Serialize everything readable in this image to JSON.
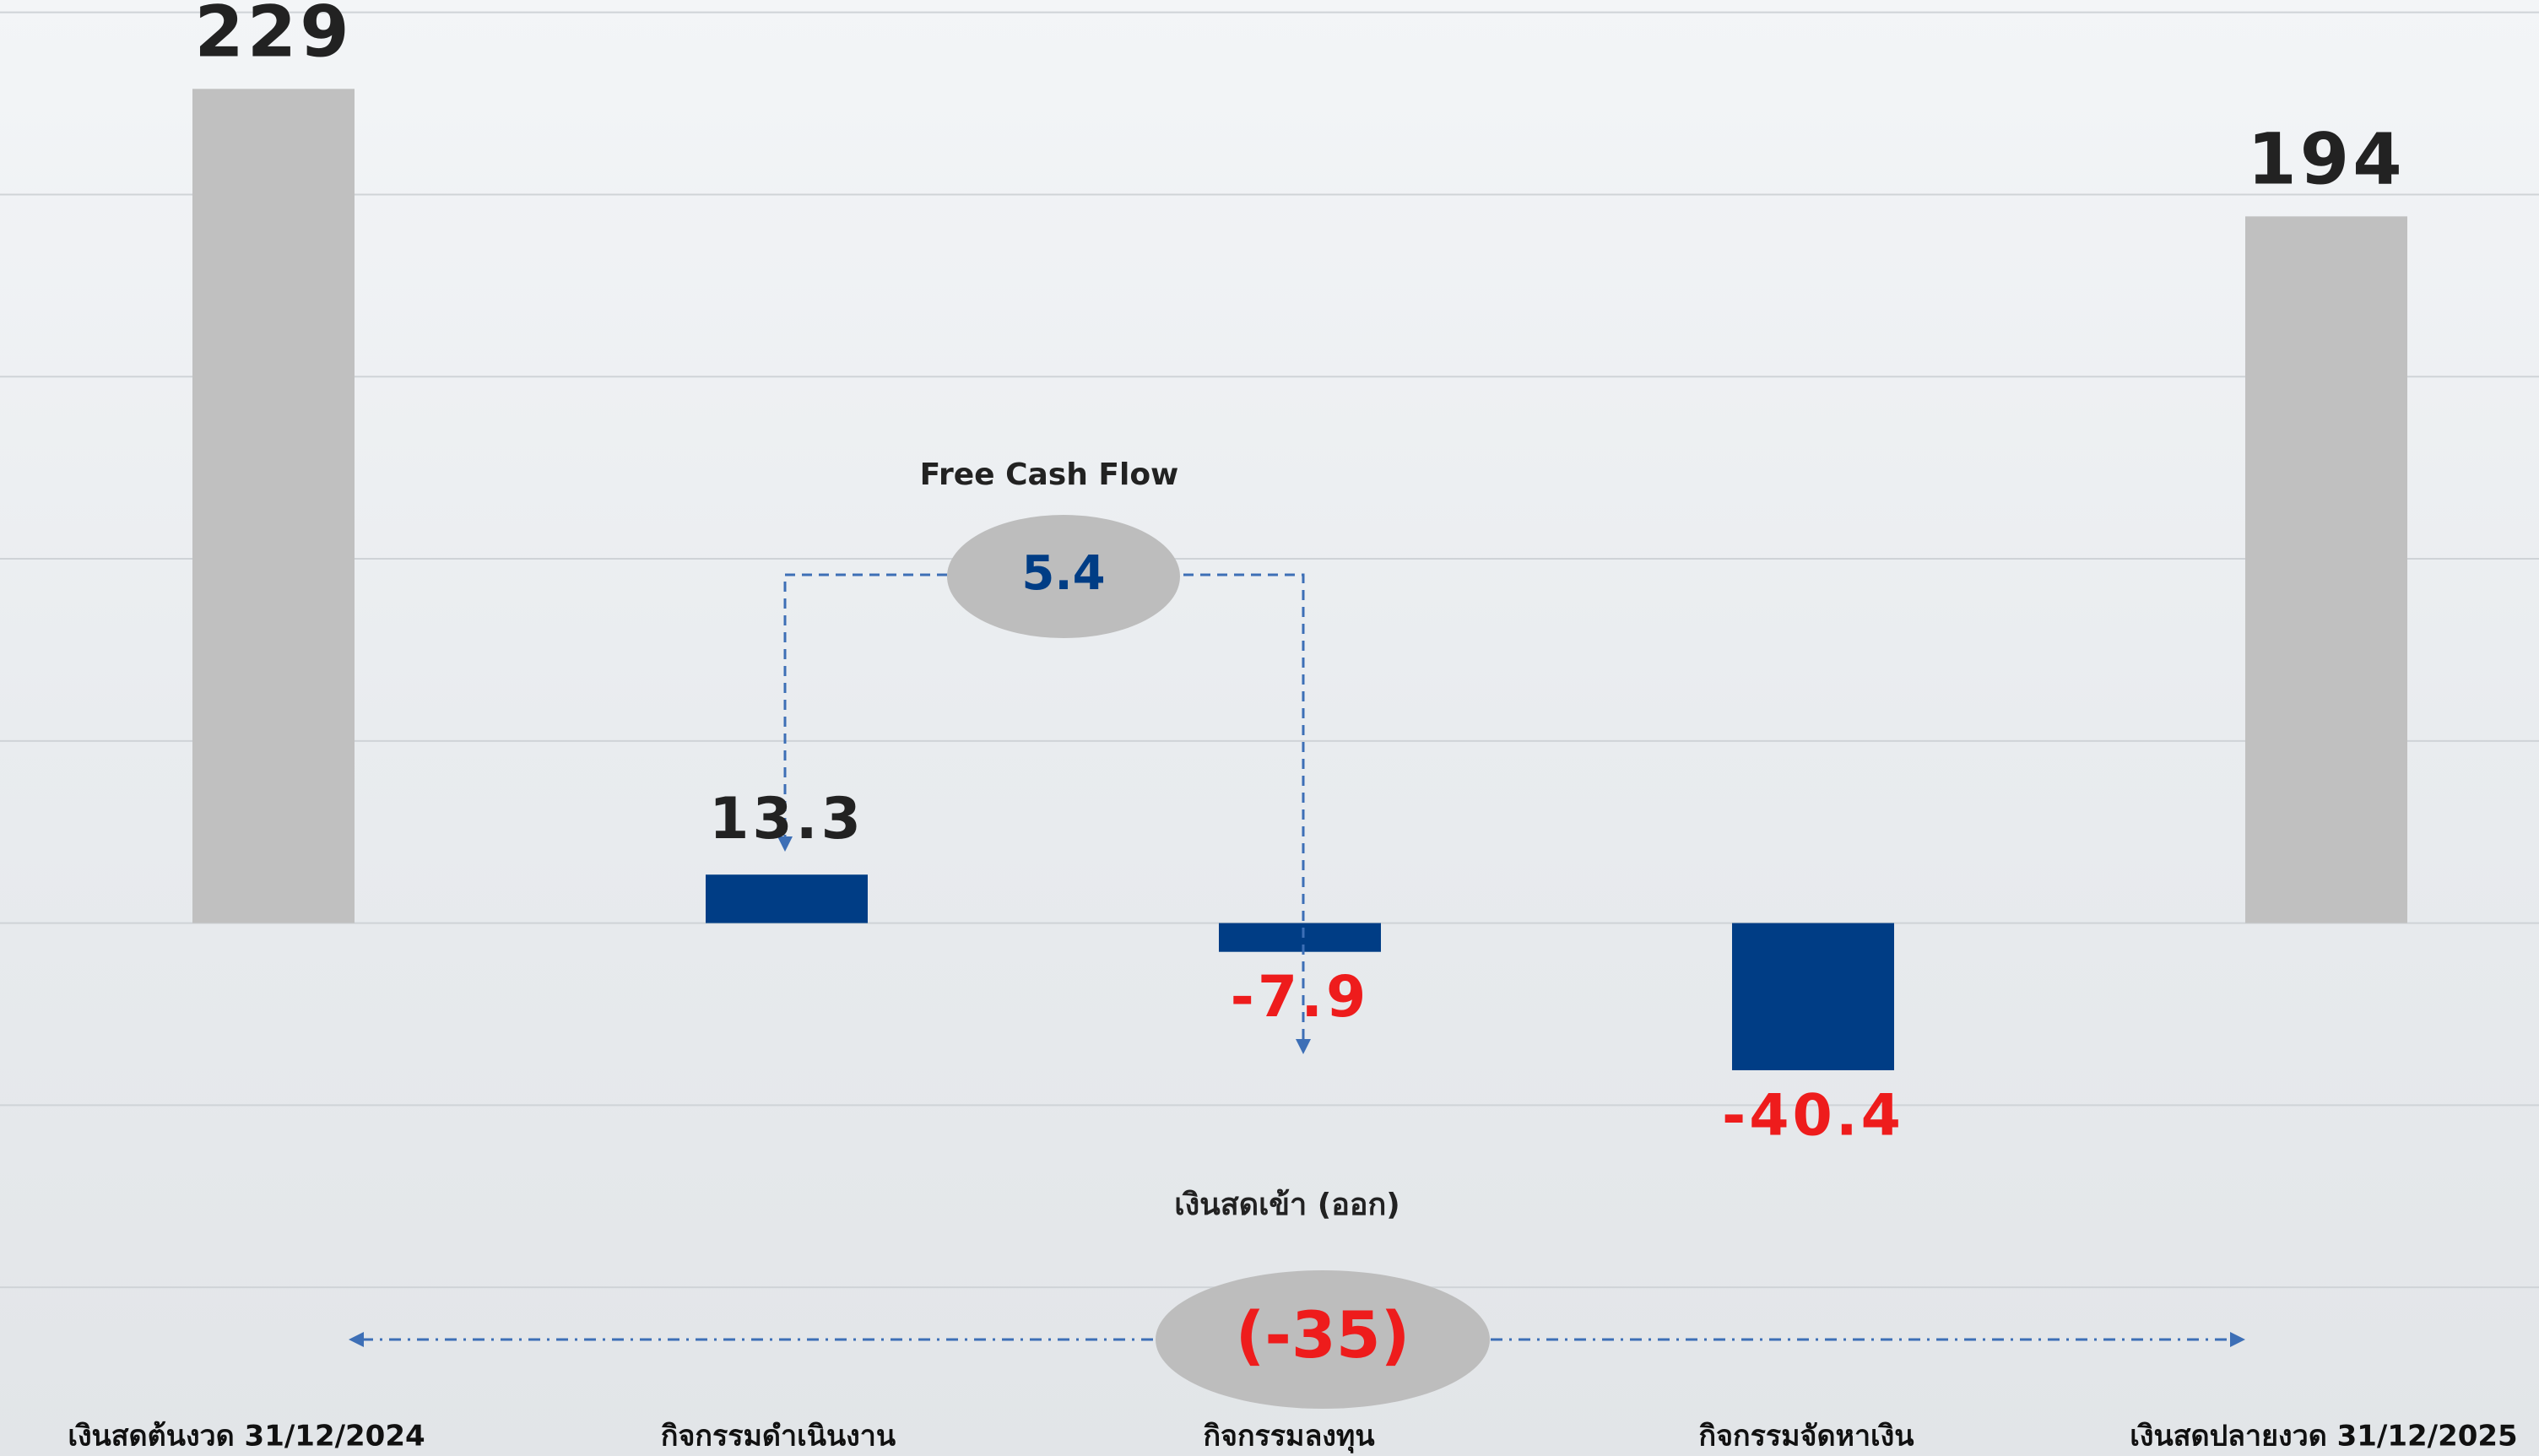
{
  "chart_data": {
    "type": "bar",
    "categories": [
      "เงินสดต้นงวด 31/12/2024",
      "กิจกรรมดำเนินงาน",
      "กิจกรรมลงทุน",
      "กิจกรรมจัดหาเงิน",
      "เงินสดปลายงวด 31/12/2025"
    ],
    "values": [
      229,
      13.3,
      -7.9,
      -40.4,
      194
    ],
    "colors": [
      "#c0c0c0",
      "#003d85",
      "#003d85",
      "#003d85",
      "#c0c0c0"
    ],
    "ylim": [
      -146.3,
      253.4
    ],
    "gridlines": [
      -100,
      -50,
      0,
      50,
      100,
      150,
      200,
      250
    ],
    "annotations": [
      {
        "title": "Free Cash Flow",
        "text": "5.4"
      },
      {
        "title": "เงินสดเข้า (ออก)",
        "text": "(-35)"
      }
    ]
  }
}
